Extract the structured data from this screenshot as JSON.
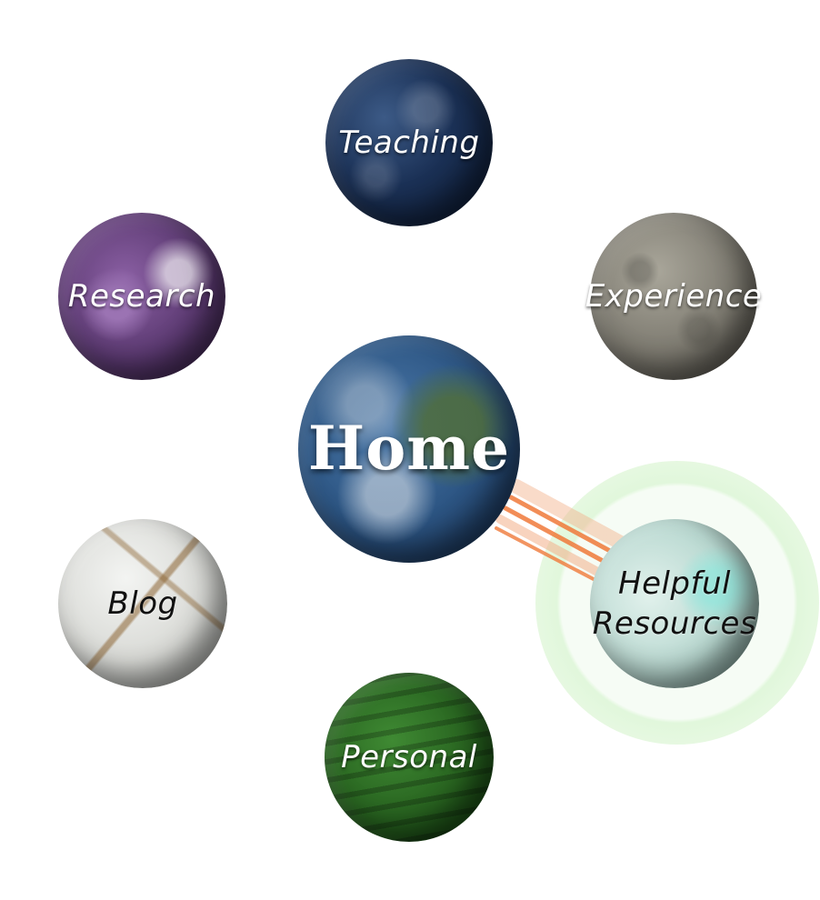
{
  "planets": {
    "home": {
      "label": "Home"
    },
    "teaching": {
      "label": "Teaching"
    },
    "research": {
      "label": "Research"
    },
    "experience": {
      "label": "Experience"
    },
    "blog": {
      "label": "Blog"
    },
    "resources": {
      "label_line1": "Helpful",
      "label_line2": "Resources"
    },
    "personal": {
      "label": "Personal"
    }
  },
  "selected": "resources",
  "colors": {
    "beam": "#f07a3a",
    "selection_glow": "#c8f0be"
  },
  "icons": {
    "home": "earth-planet-icon",
    "teaching": "ocean-planet-icon",
    "research": "purple-planet-icon",
    "experience": "moon-planet-icon",
    "blog": "cracked-white-planet-icon",
    "resources": "mint-planet-icon",
    "personal": "green-planet-icon"
  }
}
